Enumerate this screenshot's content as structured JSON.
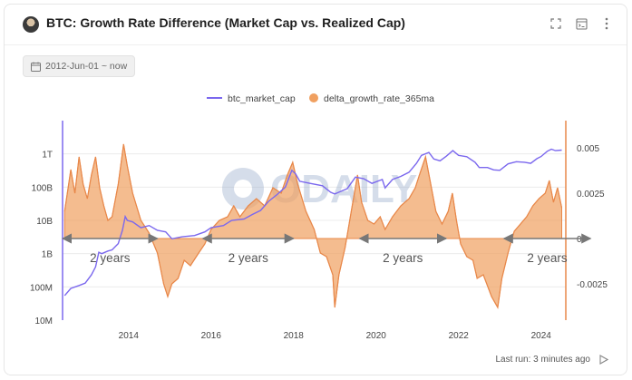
{
  "header": {
    "title": "BTC: Growth Rate Difference (Market Cap vs. Realized Cap)"
  },
  "filter": {
    "date_range": "2012-Jun-01 ~ now"
  },
  "footer": {
    "last_run": "Last run: 3 minutes ago"
  },
  "watermark": "ODAILY",
  "colors": {
    "market_cap": "#7b68ee",
    "delta": "#f0a060",
    "delta_stroke": "#e8884a",
    "annotation": "#777777"
  },
  "icons": [
    "fullscreen-icon",
    "code-icon",
    "more-icon",
    "calendar-icon",
    "play-icon"
  ],
  "annotations": [
    {
      "label": "2 years",
      "from": 2012.4,
      "to": 2014.7
    },
    {
      "label": "2 years",
      "from": 2015.8,
      "to": 2018.0
    },
    {
      "label": "2 years",
      "from": 2019.6,
      "to": 2021.7
    },
    {
      "label": "2 years",
      "from": 2023.1,
      "to": 2025.2
    }
  ],
  "chart_data": {
    "type": "line",
    "legend_position": "top-center",
    "grid": "horizontal",
    "x_range": [
      2012.4,
      2024.6
    ],
    "x_ticks": [
      2014,
      2016,
      2018,
      2020,
      2022,
      2024
    ],
    "left_axis": {
      "scale": "log",
      "range": [
        10000000,
        10000000000000
      ],
      "ticks": [
        {
          "v": 10000000,
          "label": "10M"
        },
        {
          "v": 100000000,
          "label": "100M"
        },
        {
          "v": 1000000000,
          "label": "1B"
        },
        {
          "v": 10000000000,
          "label": "10B"
        },
        {
          "v": 100000000000,
          "label": "100B"
        },
        {
          "v": 1000000000000,
          "label": "1T"
        }
      ]
    },
    "right_axis": {
      "scale": "linear",
      "range": [
        -0.0045,
        0.0065
      ],
      "ticks": [
        {
          "v": 0.005,
          "label": "0.005"
        },
        {
          "v": 0.0025,
          "label": "0.0025"
        },
        {
          "v": 0,
          "label": "0"
        },
        {
          "v": -0.0025,
          "label": "-0.0025"
        }
      ]
    },
    "series": [
      {
        "name": "btc_market_cap",
        "type": "line",
        "axis": "left",
        "points": [
          [
            2012.45,
            55000000
          ],
          [
            2012.6,
            90000000
          ],
          [
            2012.8,
            110000000
          ],
          [
            2012.95,
            130000000
          ],
          [
            2013.1,
            230000000
          ],
          [
            2013.2,
            400000000
          ],
          [
            2013.28,
            1100000000
          ],
          [
            2013.35,
            1000000000
          ],
          [
            2013.5,
            1200000000
          ],
          [
            2013.6,
            1300000000
          ],
          [
            2013.75,
            2000000000
          ],
          [
            2013.85,
            5000000000
          ],
          [
            2013.92,
            13000000000
          ],
          [
            2013.97,
            10000000000
          ],
          [
            2014.1,
            9000000000
          ],
          [
            2014.3,
            6000000000
          ],
          [
            2014.5,
            7000000000
          ],
          [
            2014.7,
            5000000000
          ],
          [
            2014.9,
            4500000000
          ],
          [
            2015.05,
            2800000000
          ],
          [
            2015.3,
            3200000000
          ],
          [
            2015.6,
            3500000000
          ],
          [
            2015.85,
            4500000000
          ],
          [
            2016.0,
            6000000000
          ],
          [
            2016.3,
            7000000000
          ],
          [
            2016.5,
            10000000000
          ],
          [
            2016.8,
            11000000000
          ],
          [
            2017.0,
            15000000000
          ],
          [
            2017.2,
            20000000000
          ],
          [
            2017.4,
            38000000000
          ],
          [
            2017.6,
            60000000000
          ],
          [
            2017.8,
            100000000000
          ],
          [
            2017.96,
            320000000000
          ],
          [
            2018.05,
            250000000000
          ],
          [
            2018.15,
            150000000000
          ],
          [
            2018.4,
            130000000000
          ],
          [
            2018.7,
            110000000000
          ],
          [
            2018.9,
            70000000000
          ],
          [
            2019.0,
            62000000000
          ],
          [
            2019.3,
            90000000000
          ],
          [
            2019.5,
            200000000000
          ],
          [
            2019.7,
            180000000000
          ],
          [
            2019.9,
            130000000000
          ],
          [
            2020.15,
            170000000000
          ],
          [
            2020.22,
            95000000000
          ],
          [
            2020.4,
            170000000000
          ],
          [
            2020.6,
            210000000000
          ],
          [
            2020.8,
            280000000000
          ],
          [
            2020.98,
            520000000000
          ],
          [
            2021.1,
            900000000000
          ],
          [
            2021.28,
            1100000000000
          ],
          [
            2021.4,
            700000000000
          ],
          [
            2021.55,
            620000000000
          ],
          [
            2021.7,
            850000000000
          ],
          [
            2021.86,
            1250000000000
          ],
          [
            2022.0,
            900000000000
          ],
          [
            2022.2,
            820000000000
          ],
          [
            2022.4,
            560000000000
          ],
          [
            2022.5,
            390000000000
          ],
          [
            2022.7,
            390000000000
          ],
          [
            2022.85,
            330000000000
          ],
          [
            2023.0,
            320000000000
          ],
          [
            2023.2,
            500000000000
          ],
          [
            2023.4,
            580000000000
          ],
          [
            2023.6,
            560000000000
          ],
          [
            2023.75,
            520000000000
          ],
          [
            2023.9,
            720000000000
          ],
          [
            2024.0,
            830000000000
          ],
          [
            2024.15,
            1200000000000
          ],
          [
            2024.25,
            1380000000000
          ],
          [
            2024.35,
            1250000000000
          ],
          [
            2024.5,
            1300000000000
          ]
        ]
      },
      {
        "name": "delta_growth_rate_365ma",
        "type": "area",
        "axis": "right",
        "points": [
          [
            2012.45,
            0.0015
          ],
          [
            2012.6,
            0.0038
          ],
          [
            2012.7,
            0.0025
          ],
          [
            2012.8,
            0.0045
          ],
          [
            2012.9,
            0.003
          ],
          [
            2013.0,
            0.0022
          ],
          [
            2013.1,
            0.0035
          ],
          [
            2013.2,
            0.0045
          ],
          [
            2013.3,
            0.0028
          ],
          [
            2013.4,
            0.0018
          ],
          [
            2013.5,
            0.001
          ],
          [
            2013.6,
            0.0012
          ],
          [
            2013.75,
            0.003
          ],
          [
            2013.88,
            0.0052
          ],
          [
            2013.97,
            0.004
          ],
          [
            2014.1,
            0.0025
          ],
          [
            2014.3,
            0.001
          ],
          [
            2014.5,
            0.0003
          ],
          [
            2014.7,
            -0.0008
          ],
          [
            2014.85,
            -0.0025
          ],
          [
            2014.95,
            -0.0032
          ],
          [
            2015.05,
            -0.0025
          ],
          [
            2015.2,
            -0.0022
          ],
          [
            2015.35,
            -0.0012
          ],
          [
            2015.5,
            -0.0015
          ],
          [
            2015.7,
            -0.0008
          ],
          [
            2015.85,
            -0.0003
          ],
          [
            2016.0,
            0.0005
          ],
          [
            2016.2,
            0.001
          ],
          [
            2016.4,
            0.0012
          ],
          [
            2016.55,
            0.0018
          ],
          [
            2016.7,
            0.0012
          ],
          [
            2016.9,
            0.0018
          ],
          [
            2017.1,
            0.0022
          ],
          [
            2017.3,
            0.0018
          ],
          [
            2017.5,
            0.0028
          ],
          [
            2017.7,
            0.0025
          ],
          [
            2017.85,
            0.0035
          ],
          [
            2017.98,
            0.0042
          ],
          [
            2018.1,
            0.003
          ],
          [
            2018.3,
            0.0015
          ],
          [
            2018.5,
            0.0005
          ],
          [
            2018.65,
            -0.0008
          ],
          [
            2018.8,
            -0.001
          ],
          [
            2018.95,
            -0.002
          ],
          [
            2019.0,
            -0.0038
          ],
          [
            2019.1,
            -0.002
          ],
          [
            2019.25,
            -0.0005
          ],
          [
            2019.4,
            0.0015
          ],
          [
            2019.55,
            0.0035
          ],
          [
            2019.65,
            0.002
          ],
          [
            2019.8,
            0.001
          ],
          [
            2019.95,
            0.0008
          ],
          [
            2020.1,
            0.0012
          ],
          [
            2020.22,
            0.0005
          ],
          [
            2020.4,
            0.0012
          ],
          [
            2020.6,
            0.0018
          ],
          [
            2020.8,
            0.0022
          ],
          [
            2020.95,
            0.0028
          ],
          [
            2021.05,
            0.0035
          ],
          [
            2021.2,
            0.0045
          ],
          [
            2021.3,
            0.0033
          ],
          [
            2021.45,
            0.0015
          ],
          [
            2021.6,
            0.0008
          ],
          [
            2021.75,
            0.0015
          ],
          [
            2021.85,
            0.0025
          ],
          [
            2021.95,
            0.001
          ],
          [
            2022.05,
            -0.0003
          ],
          [
            2022.2,
            -0.001
          ],
          [
            2022.35,
            -0.0012
          ],
          [
            2022.45,
            -0.0022
          ],
          [
            2022.6,
            -0.002
          ],
          [
            2022.8,
            -0.0032
          ],
          [
            2022.95,
            -0.0038
          ],
          [
            2023.05,
            -0.0022
          ],
          [
            2023.2,
            -0.0008
          ],
          [
            2023.35,
            0.0004
          ],
          [
            2023.5,
            0.0008
          ],
          [
            2023.65,
            0.0012
          ],
          [
            2023.8,
            0.0018
          ],
          [
            2023.95,
            0.0022
          ],
          [
            2024.1,
            0.0025
          ],
          [
            2024.2,
            0.0032
          ],
          [
            2024.3,
            0.002
          ],
          [
            2024.4,
            0.0028
          ],
          [
            2024.5,
            0.0017
          ]
        ]
      }
    ]
  }
}
